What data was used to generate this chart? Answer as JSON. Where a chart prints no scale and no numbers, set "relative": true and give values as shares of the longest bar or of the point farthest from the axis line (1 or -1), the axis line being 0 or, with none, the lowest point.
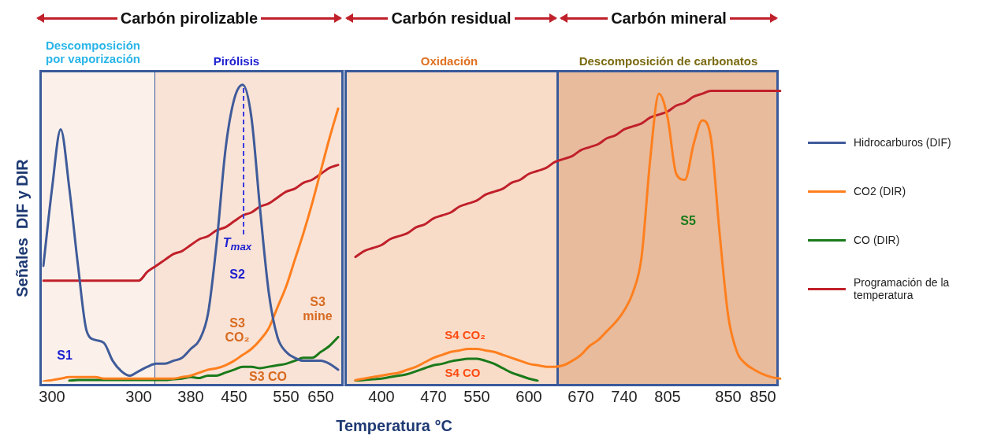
{
  "chart_data": {
    "type": "line",
    "relative": true,
    "xlabel": "Temperatura °C",
    "ylabel": "Señales  DIF y DIR",
    "legend": "right",
    "grid": false,
    "marker": "none",
    "line_style": "solid",
    "categories": [
      null,
      "300",
      null,
      null,
      null,
      null,
      null,
      null,
      null,
      null,
      null,
      "300",
      null,
      null,
      null,
      null,
      null,
      "380",
      null,
      null,
      null,
      null,
      "450",
      null,
      null,
      null,
      null,
      null,
      "550",
      null,
      null,
      null,
      "650",
      null,
      null,
      null,
      null,
      null,
      null,
      "400",
      null,
      null,
      null,
      null,
      null,
      "470",
      null,
      null,
      null,
      null,
      "550",
      null,
      null,
      null,
      null,
      null,
      "600",
      null,
      null,
      null,
      null,
      null,
      "670",
      null,
      null,
      null,
      null,
      "740",
      null,
      null,
      null,
      null,
      "805",
      null,
      null,
      null,
      null,
      null,
      null,
      "850",
      null,
      null,
      null,
      "850",
      null,
      null
    ],
    "series": [
      {
        "name": "Hidrocarburos  (DIF)",
        "color": "#3f5b9a",
        "values": [
          0.39,
          0.65,
          0.85,
          0.65,
          0.39,
          0.17,
          0.14,
          0.13,
          0.07,
          0.035,
          0.02,
          0.035,
          0.05,
          0.06,
          0.06,
          0.07,
          0.08,
          0.11,
          0.14,
          0.23,
          0.47,
          0.78,
          0.95,
          1,
          0.89,
          0.58,
          0.3,
          0.15,
          0.1,
          0.08,
          0.07,
          0.07,
          0.07,
          0.06,
          0.04,
          null,
          null,
          null,
          null,
          null,
          null,
          null,
          null,
          null,
          null,
          null,
          null,
          null,
          null,
          null,
          null,
          null,
          null,
          null,
          null,
          null,
          null,
          null,
          null,
          null,
          null,
          null,
          null,
          null,
          null,
          null,
          null,
          null,
          null,
          null,
          null,
          null,
          null,
          null,
          null,
          null,
          null,
          null,
          null,
          null,
          null,
          null,
          null,
          null,
          null,
          null
        ]
      },
      {
        "name": "CO2 (DIR)",
        "color": "#ff7f1e",
        "values": [
          0,
          0.005,
          0.01,
          0.015,
          0.015,
          0.015,
          0.015,
          0.01,
          0.01,
          0.01,
          0.01,
          0.01,
          0.01,
          0.01,
          0.01,
          0.01,
          0.015,
          0.02,
          0.03,
          0.04,
          0.045,
          0.055,
          0.07,
          0.09,
          0.11,
          0.14,
          0.18,
          0.25,
          0.32,
          0.41,
          0.5,
          0.6,
          0.71,
          0.82,
          0.92,
          null,
          0.005,
          0.01,
          0.015,
          0.02,
          0.025,
          0.03,
          0.04,
          0.05,
          0.065,
          0.08,
          0.09,
          0.1,
          0.105,
          0.11,
          0.11,
          0.105,
          0.1,
          0.09,
          0.08,
          0.07,
          0.06,
          0.055,
          0.05,
          0.05,
          0.055,
          0.07,
          0.09,
          0.12,
          0.14,
          0.17,
          0.2,
          0.24,
          0.3,
          0.42,
          0.75,
          0.97,
          0.89,
          0.7,
          0.68,
          0.8,
          0.88,
          0.82,
          0.5,
          0.22,
          0.1,
          0.06,
          0.04,
          0.025,
          0.015,
          0.01
        ]
      },
      {
        "name": "CO (DIR)",
        "color": "#1a7a1a",
        "values": [
          null,
          null,
          null,
          0.003,
          0.005,
          0.005,
          0.005,
          0.005,
          0.005,
          0.005,
          0.005,
          0.005,
          0.005,
          0.005,
          0.005,
          0.008,
          0.01,
          0.015,
          0.012,
          0.02,
          0.02,
          0.03,
          0.04,
          0.05,
          0.05,
          0.045,
          0.05,
          0.055,
          0.06,
          0.07,
          0.08,
          0.08,
          0.1,
          0.12,
          0.15,
          null,
          0.003,
          0.005,
          0.008,
          0.01,
          0.015,
          0.02,
          0.025,
          0.035,
          0.045,
          0.055,
          0.06,
          0.068,
          0.073,
          0.077,
          0.077,
          0.07,
          0.06,
          0.045,
          0.03,
          0.02,
          0.01,
          0.003,
          null,
          null,
          null,
          null,
          null,
          null,
          null,
          null,
          null,
          null,
          null,
          null,
          null,
          null,
          null,
          null,
          null,
          null,
          null,
          null,
          null,
          null,
          null,
          null,
          null,
          null,
          null,
          null
        ]
      },
      {
        "name": "Programación  de la temperatura",
        "color": "#c0202a",
        "values": [
          0.34,
          0.34,
          0.34,
          0.34,
          0.34,
          0.34,
          0.34,
          0.34,
          0.34,
          0.34,
          0.34,
          0.34,
          0.37,
          0.39,
          0.41,
          0.43,
          0.44,
          0.46,
          0.48,
          0.49,
          0.51,
          0.52,
          0.54,
          0.56,
          0.57,
          0.59,
          0.6,
          0.62,
          0.64,
          0.65,
          0.67,
          0.68,
          0.7,
          0.72,
          0.73,
          null,
          0.42,
          0.44,
          0.45,
          0.46,
          0.48,
          0.49,
          0.5,
          0.52,
          0.53,
          0.55,
          0.56,
          0.57,
          0.59,
          0.6,
          0.61,
          0.63,
          0.64,
          0.65,
          0.67,
          0.68,
          0.7,
          0.71,
          0.72,
          0.74,
          0.75,
          0.76,
          0.78,
          0.79,
          0.8,
          0.82,
          0.83,
          0.85,
          0.86,
          0.87,
          0.89,
          0.9,
          0.91,
          0.93,
          0.94,
          0.96,
          0.97,
          0.98,
          0.98,
          0.98,
          0.98,
          0.98,
          0.98,
          0.98,
          0.98,
          0.98
        ]
      }
    ],
    "annotations": [
      "Carbón pirolizable",
      "Carbón residual",
      "Carbón mineral",
      "Descomposición por vaporización",
      "Pirólisis",
      "Oxidación",
      "Descomposición de carbonatos",
      "S1",
      "S2",
      "T$_{max}$",
      "S3 CO₂",
      "S3 mine",
      "S3 CO",
      "S4 CO₂",
      "S4 CO",
      "S5"
    ]
  }
}
